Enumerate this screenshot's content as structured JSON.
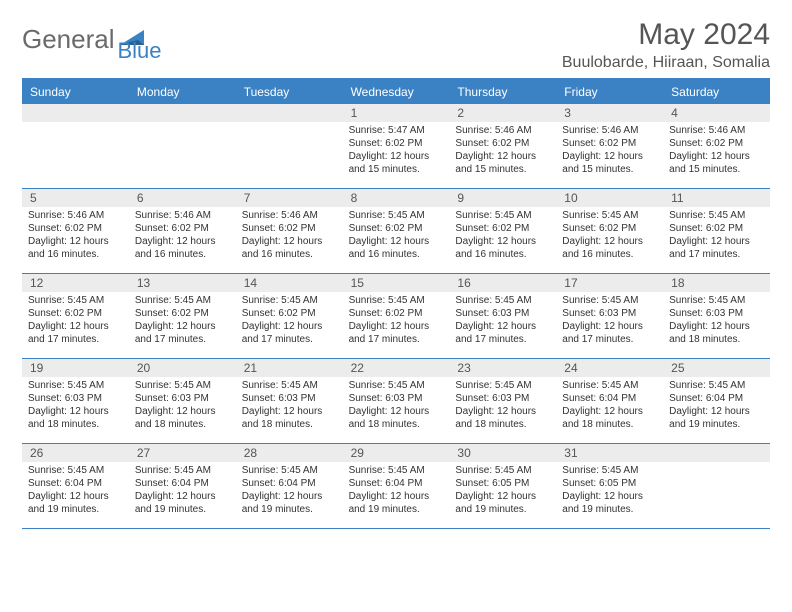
{
  "logo": {
    "text1": "General",
    "text2": "Blue"
  },
  "title": "May 2024",
  "subtitle": "Buulobarde, Hiiraan, Somalia",
  "colors": {
    "accent": "#3b82c4",
    "header_bg": "#3b82c4",
    "header_text": "#ffffff",
    "daynum_bg": "#ececec",
    "text": "#333333",
    "title_text": "#555555"
  },
  "day_names": [
    "Sunday",
    "Monday",
    "Tuesday",
    "Wednesday",
    "Thursday",
    "Friday",
    "Saturday"
  ],
  "weeks": [
    [
      {
        "n": "",
        "sr": "",
        "ss": "",
        "dl": ""
      },
      {
        "n": "",
        "sr": "",
        "ss": "",
        "dl": ""
      },
      {
        "n": "",
        "sr": "",
        "ss": "",
        "dl": ""
      },
      {
        "n": "1",
        "sr": "Sunrise: 5:47 AM",
        "ss": "Sunset: 6:02 PM",
        "dl": "Daylight: 12 hours and 15 minutes."
      },
      {
        "n": "2",
        "sr": "Sunrise: 5:46 AM",
        "ss": "Sunset: 6:02 PM",
        "dl": "Daylight: 12 hours and 15 minutes."
      },
      {
        "n": "3",
        "sr": "Sunrise: 5:46 AM",
        "ss": "Sunset: 6:02 PM",
        "dl": "Daylight: 12 hours and 15 minutes."
      },
      {
        "n": "4",
        "sr": "Sunrise: 5:46 AM",
        "ss": "Sunset: 6:02 PM",
        "dl": "Daylight: 12 hours and 15 minutes."
      }
    ],
    [
      {
        "n": "5",
        "sr": "Sunrise: 5:46 AM",
        "ss": "Sunset: 6:02 PM",
        "dl": "Daylight: 12 hours and 16 minutes."
      },
      {
        "n": "6",
        "sr": "Sunrise: 5:46 AM",
        "ss": "Sunset: 6:02 PM",
        "dl": "Daylight: 12 hours and 16 minutes."
      },
      {
        "n": "7",
        "sr": "Sunrise: 5:46 AM",
        "ss": "Sunset: 6:02 PM",
        "dl": "Daylight: 12 hours and 16 minutes."
      },
      {
        "n": "8",
        "sr": "Sunrise: 5:45 AM",
        "ss": "Sunset: 6:02 PM",
        "dl": "Daylight: 12 hours and 16 minutes."
      },
      {
        "n": "9",
        "sr": "Sunrise: 5:45 AM",
        "ss": "Sunset: 6:02 PM",
        "dl": "Daylight: 12 hours and 16 minutes."
      },
      {
        "n": "10",
        "sr": "Sunrise: 5:45 AM",
        "ss": "Sunset: 6:02 PM",
        "dl": "Daylight: 12 hours and 16 minutes."
      },
      {
        "n": "11",
        "sr": "Sunrise: 5:45 AM",
        "ss": "Sunset: 6:02 PM",
        "dl": "Daylight: 12 hours and 17 minutes."
      }
    ],
    [
      {
        "n": "12",
        "sr": "Sunrise: 5:45 AM",
        "ss": "Sunset: 6:02 PM",
        "dl": "Daylight: 12 hours and 17 minutes."
      },
      {
        "n": "13",
        "sr": "Sunrise: 5:45 AM",
        "ss": "Sunset: 6:02 PM",
        "dl": "Daylight: 12 hours and 17 minutes."
      },
      {
        "n": "14",
        "sr": "Sunrise: 5:45 AM",
        "ss": "Sunset: 6:02 PM",
        "dl": "Daylight: 12 hours and 17 minutes."
      },
      {
        "n": "15",
        "sr": "Sunrise: 5:45 AM",
        "ss": "Sunset: 6:02 PM",
        "dl": "Daylight: 12 hours and 17 minutes."
      },
      {
        "n": "16",
        "sr": "Sunrise: 5:45 AM",
        "ss": "Sunset: 6:03 PM",
        "dl": "Daylight: 12 hours and 17 minutes."
      },
      {
        "n": "17",
        "sr": "Sunrise: 5:45 AM",
        "ss": "Sunset: 6:03 PM",
        "dl": "Daylight: 12 hours and 17 minutes."
      },
      {
        "n": "18",
        "sr": "Sunrise: 5:45 AM",
        "ss": "Sunset: 6:03 PM",
        "dl": "Daylight: 12 hours and 18 minutes."
      }
    ],
    [
      {
        "n": "19",
        "sr": "Sunrise: 5:45 AM",
        "ss": "Sunset: 6:03 PM",
        "dl": "Daylight: 12 hours and 18 minutes."
      },
      {
        "n": "20",
        "sr": "Sunrise: 5:45 AM",
        "ss": "Sunset: 6:03 PM",
        "dl": "Daylight: 12 hours and 18 minutes."
      },
      {
        "n": "21",
        "sr": "Sunrise: 5:45 AM",
        "ss": "Sunset: 6:03 PM",
        "dl": "Daylight: 12 hours and 18 minutes."
      },
      {
        "n": "22",
        "sr": "Sunrise: 5:45 AM",
        "ss": "Sunset: 6:03 PM",
        "dl": "Daylight: 12 hours and 18 minutes."
      },
      {
        "n": "23",
        "sr": "Sunrise: 5:45 AM",
        "ss": "Sunset: 6:03 PM",
        "dl": "Daylight: 12 hours and 18 minutes."
      },
      {
        "n": "24",
        "sr": "Sunrise: 5:45 AM",
        "ss": "Sunset: 6:04 PM",
        "dl": "Daylight: 12 hours and 18 minutes."
      },
      {
        "n": "25",
        "sr": "Sunrise: 5:45 AM",
        "ss": "Sunset: 6:04 PM",
        "dl": "Daylight: 12 hours and 19 minutes."
      }
    ],
    [
      {
        "n": "26",
        "sr": "Sunrise: 5:45 AM",
        "ss": "Sunset: 6:04 PM",
        "dl": "Daylight: 12 hours and 19 minutes."
      },
      {
        "n": "27",
        "sr": "Sunrise: 5:45 AM",
        "ss": "Sunset: 6:04 PM",
        "dl": "Daylight: 12 hours and 19 minutes."
      },
      {
        "n": "28",
        "sr": "Sunrise: 5:45 AM",
        "ss": "Sunset: 6:04 PM",
        "dl": "Daylight: 12 hours and 19 minutes."
      },
      {
        "n": "29",
        "sr": "Sunrise: 5:45 AM",
        "ss": "Sunset: 6:04 PM",
        "dl": "Daylight: 12 hours and 19 minutes."
      },
      {
        "n": "30",
        "sr": "Sunrise: 5:45 AM",
        "ss": "Sunset: 6:05 PM",
        "dl": "Daylight: 12 hours and 19 minutes."
      },
      {
        "n": "31",
        "sr": "Sunrise: 5:45 AM",
        "ss": "Sunset: 6:05 PM",
        "dl": "Daylight: 12 hours and 19 minutes."
      },
      {
        "n": "",
        "sr": "",
        "ss": "",
        "dl": ""
      }
    ]
  ]
}
